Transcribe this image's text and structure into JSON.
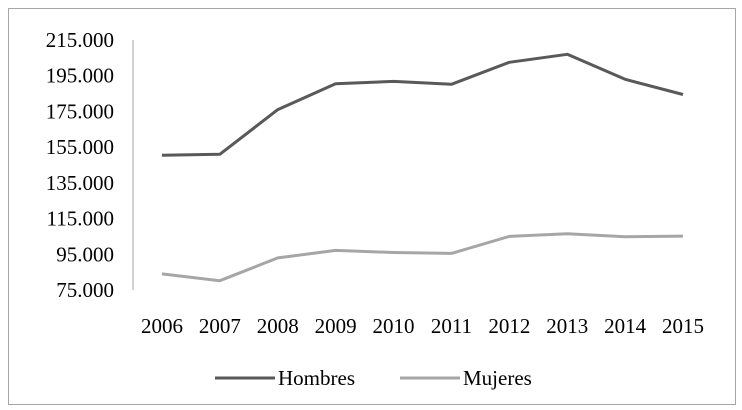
{
  "chart_data": {
    "type": "line",
    "title": "",
    "xlabel": "",
    "ylabel": "",
    "categories": [
      "2006",
      "2007",
      "2008",
      "2009",
      "2010",
      "2011",
      "2012",
      "2013",
      "2014",
      "2015"
    ],
    "ylim": [
      75000,
      215000
    ],
    "yticks": [
      75000,
      95000,
      115000,
      135000,
      155000,
      175000,
      195000,
      215000
    ],
    "ytick_labels": [
      "75.000",
      "95.000",
      "115.000",
      "135.000",
      "155.000",
      "175.000",
      "195.000",
      "215.000"
    ],
    "grid": false,
    "legend_position": "bottom",
    "series": [
      {
        "name": "Hombres",
        "color": "#595959",
        "values": [
          150500,
          151000,
          176000,
          190500,
          191800,
          190200,
          202500,
          207000,
          193000,
          184500
        ]
      },
      {
        "name": "Mujeres",
        "color": "#a6a6a6",
        "values": [
          84000,
          80200,
          93000,
          97200,
          96000,
          95500,
          105000,
          106500,
          104800,
          105200
        ]
      }
    ]
  }
}
